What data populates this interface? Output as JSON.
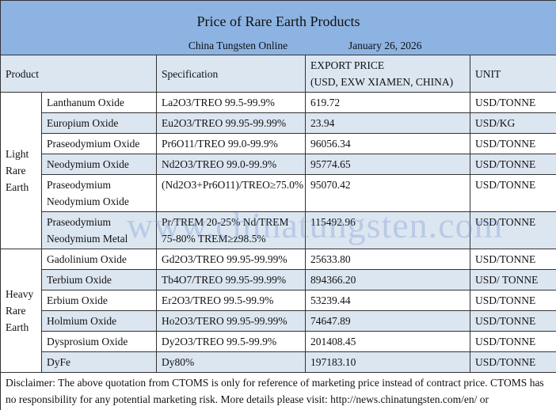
{
  "title": "Price of Rare Earth Products",
  "source": "China Tungsten Online",
  "date": "January 26, 2026",
  "headers": {
    "product": "Product",
    "spec": "Specification",
    "price_l1": "EXPORT PRICE",
    "price_l2": "(USD, EXW XIAMEN, CHINA)",
    "unit": "UNIT"
  },
  "groups": {
    "light": "Light Rare Earth",
    "heavy": "Heavy Rare Earth"
  },
  "rows": [
    {
      "name": "Lanthanum Oxide",
      "spec": "La2O3/TREO 99.5-99.9%",
      "price": "619.72",
      "unit": "USD/TONNE"
    },
    {
      "name": "Europium Oxide",
      "spec": "Eu2O3/TREO 99.95-99.99%",
      "price": "23.94",
      "unit": "USD/KG"
    },
    {
      "name": "Praseodymium Oxide",
      "spec": "Pr6O11/TREO 99.0-99.9%",
      "price": "96056.34",
      "unit": "USD/TONNE"
    },
    {
      "name": "Neodymium Oxide",
      "spec": "Nd2O3/TREO 99.0-99.9%",
      "price": "95774.65",
      "unit": "USD/TONNE"
    },
    {
      "name": "Praseodymium Neodymium Oxide",
      "spec": "(Nd2O3+Pr6O11)/TREO≥75.0%",
      "price": "95070.42",
      "unit": "USD/TONNE"
    },
    {
      "name": "Praseodymium Neodymium Metal",
      "spec": "Pr/TREM 20-25% Nd/TREM 75-80% TREM≥z98.5%",
      "price": "115492.96",
      "unit": "USD/TONNE"
    },
    {
      "name": "Gadolinium Oxide",
      "spec": "Gd2O3/TREO 99.95-99.99%",
      "price": "25633.80",
      "unit": "USD/TONNE"
    },
    {
      "name": "Terbium Oxide",
      "spec": "Tb4O7/TREO 99.95-99.99%",
      "price": "894366.20",
      "unit": "USD/ TONNE"
    },
    {
      "name": "Erbium Oxide",
      "spec": "Er2O3/TREO 99.5-99.9%",
      "price": "53239.44",
      "unit": "USD/TONNE"
    },
    {
      "name": "Holmium Oxide",
      "spec": "Ho2O3/TERO 99.95-99.99%",
      "price": "74647.89",
      "unit": "USD/TONNE"
    },
    {
      "name": "Dysprosium Oxide",
      "spec": "Dy2O3/TREO 99.5-99.9%",
      "price": "201408.45",
      "unit": "USD/TONNE"
    },
    {
      "name": "DyFe",
      "spec": "Dy80%",
      "price": "197183.10",
      "unit": "USD/TONNE"
    }
  ],
  "disclaimer": "Disclaimer: The above quotation from CTOMS is only for reference of marketing price instead of contract price. CTOMS has no responsibility for any potential marketing risk. More details please visit:    http://news.chinatungsten.com/en/ or http://www.ctia.com.cn/en/.",
  "watermark": "www.chinatungsten.com",
  "colors": {
    "title_bg": "#8db3e2",
    "alt_row": "#dce6f1"
  }
}
